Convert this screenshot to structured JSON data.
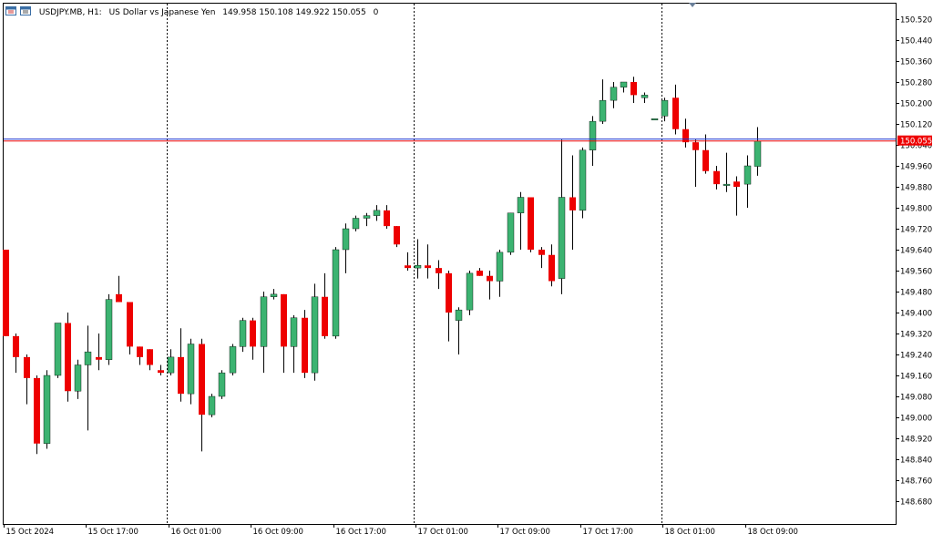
{
  "header": {
    "symbol": "USDJPY.MB, H1:",
    "description": "US Dollar vs Japanese Yen",
    "ohlc": "149.958 150.108 149.922 150.055",
    "volume": "0",
    "icon": "chart-window-icon"
  },
  "colors": {
    "bull": "#3cb371",
    "bear": "#ee0000",
    "grid": "#000000",
    "price_tag_bg": "#ee0000",
    "price_line_bid": "#ee0000",
    "price_line_ask": "#2233cc"
  },
  "current_price": {
    "label": "150.055",
    "bid": 150.055,
    "ask": 150.062
  },
  "chart_data": {
    "type": "candlestick",
    "symbol": "USDJPY.MB",
    "timeframe": "H1",
    "ylim": [
      148.6,
      150.6
    ],
    "y_ticks": [
      150.52,
      150.44,
      150.36,
      150.28,
      150.2,
      150.12,
      150.04,
      149.96,
      149.88,
      149.8,
      149.72,
      149.64,
      149.56,
      149.48,
      149.4,
      149.32,
      149.24,
      149.16,
      149.08,
      149.0,
      148.92,
      148.84,
      148.76,
      148.68
    ],
    "y_tick_labels": [
      "150.520",
      "150.440",
      "150.360",
      "150.280",
      "150.200",
      "150.120",
      "150.040",
      "149.960",
      "149.880",
      "149.800",
      "149.720",
      "149.640",
      "149.560",
      "149.480",
      "149.400",
      "149.320",
      "149.240",
      "149.160",
      "149.080",
      "149.000",
      "148.920",
      "148.840",
      "148.760",
      "148.680"
    ],
    "x_labels": [
      {
        "bar": 0,
        "text": "15 Oct 2024"
      },
      {
        "bar": 8,
        "text": "15 Oct 17:00"
      },
      {
        "bar": 16,
        "text": "16 Oct 01:00"
      },
      {
        "bar": 24,
        "text": "16 Oct 09:00"
      },
      {
        "bar": 32,
        "text": "16 Oct 17:00"
      },
      {
        "bar": 40,
        "text": "17 Oct 01:00"
      },
      {
        "bar": 48,
        "text": "17 Oct 09:00"
      },
      {
        "bar": 56,
        "text": "17 Oct 17:00"
      },
      {
        "bar": 64,
        "text": "18 Oct 01:00"
      },
      {
        "bar": 72,
        "text": "18 Oct 09:00"
      }
    ],
    "day_separators": [
      15,
      39,
      63
    ],
    "candles": [
      {
        "o": 149.64,
        "h": 149.64,
        "l": 149.31,
        "c": 149.31
      },
      {
        "o": 149.31,
        "h": 149.32,
        "l": 149.17,
        "c": 149.23
      },
      {
        "o": 149.23,
        "h": 149.24,
        "l": 149.05,
        "c": 149.15
      },
      {
        "o": 149.15,
        "h": 149.16,
        "l": 148.86,
        "c": 148.9
      },
      {
        "o": 148.9,
        "h": 149.18,
        "l": 148.88,
        "c": 149.16
      },
      {
        "o": 149.16,
        "h": 149.36,
        "l": 149.15,
        "c": 149.36
      },
      {
        "o": 149.36,
        "h": 149.4,
        "l": 149.06,
        "c": 149.1
      },
      {
        "o": 149.1,
        "h": 149.22,
        "l": 149.07,
        "c": 149.2
      },
      {
        "o": 149.2,
        "h": 149.35,
        "l": 148.95,
        "c": 149.25
      },
      {
        "o": 149.23,
        "h": 149.32,
        "l": 149.18,
        "c": 149.22
      },
      {
        "o": 149.22,
        "h": 149.47,
        "l": 149.2,
        "c": 149.45
      },
      {
        "o": 149.47,
        "h": 149.54,
        "l": 149.44,
        "c": 149.44
      },
      {
        "o": 149.44,
        "h": 149.44,
        "l": 149.24,
        "c": 149.27
      },
      {
        "o": 149.27,
        "h": 149.27,
        "l": 149.2,
        "c": 149.23
      },
      {
        "o": 149.26,
        "h": 149.26,
        "l": 149.18,
        "c": 149.2
      },
      {
        "o": 149.18,
        "h": 149.2,
        "l": 149.16,
        "c": 149.17
      },
      {
        "o": 149.17,
        "h": 149.26,
        "l": 149.16,
        "c": 149.23
      },
      {
        "o": 149.23,
        "h": 149.34,
        "l": 149.06,
        "c": 149.09
      },
      {
        "o": 149.09,
        "h": 149.3,
        "l": 149.05,
        "c": 149.28
      },
      {
        "o": 149.28,
        "h": 149.3,
        "l": 148.87,
        "c": 149.01
      },
      {
        "o": 149.01,
        "h": 149.09,
        "l": 149.0,
        "c": 149.08
      },
      {
        "o": 149.08,
        "h": 149.18,
        "l": 149.07,
        "c": 149.17
      },
      {
        "o": 149.17,
        "h": 149.28,
        "l": 149.16,
        "c": 149.27
      },
      {
        "o": 149.27,
        "h": 149.38,
        "l": 149.25,
        "c": 149.37
      },
      {
        "o": 149.37,
        "h": 149.38,
        "l": 149.22,
        "c": 149.27
      },
      {
        "o": 149.27,
        "h": 149.48,
        "l": 149.17,
        "c": 149.46
      },
      {
        "o": 149.46,
        "h": 149.49,
        "l": 149.45,
        "c": 149.47
      },
      {
        "o": 149.47,
        "h": 149.47,
        "l": 149.17,
        "c": 149.27
      },
      {
        "o": 149.27,
        "h": 149.39,
        "l": 149.17,
        "c": 149.38
      },
      {
        "o": 149.38,
        "h": 149.41,
        "l": 149.15,
        "c": 149.17
      },
      {
        "o": 149.17,
        "h": 149.51,
        "l": 149.14,
        "c": 149.46
      },
      {
        "o": 149.46,
        "h": 149.55,
        "l": 149.3,
        "c": 149.31
      },
      {
        "o": 149.31,
        "h": 149.65,
        "l": 149.3,
        "c": 149.64
      },
      {
        "o": 149.64,
        "h": 149.74,
        "l": 149.55,
        "c": 149.72
      },
      {
        "o": 149.72,
        "h": 149.77,
        "l": 149.71,
        "c": 149.76
      },
      {
        "o": 149.76,
        "h": 149.78,
        "l": 149.73,
        "c": 149.77
      },
      {
        "o": 149.77,
        "h": 149.81,
        "l": 149.75,
        "c": 149.79
      },
      {
        "o": 149.79,
        "h": 149.81,
        "l": 149.72,
        "c": 149.73
      },
      {
        "o": 149.73,
        "h": 149.73,
        "l": 149.65,
        "c": 149.66
      },
      {
        "o": 149.58,
        "h": 149.63,
        "l": 149.56,
        "c": 149.57
      },
      {
        "o": 149.57,
        "h": 149.68,
        "l": 149.53,
        "c": 149.58
      },
      {
        "o": 149.58,
        "h": 149.66,
        "l": 149.53,
        "c": 149.57
      },
      {
        "o": 149.57,
        "h": 149.6,
        "l": 149.49,
        "c": 149.55
      },
      {
        "o": 149.55,
        "h": 149.56,
        "l": 149.29,
        "c": 149.4
      },
      {
        "o": 149.37,
        "h": 149.42,
        "l": 149.24,
        "c": 149.41
      },
      {
        "o": 149.41,
        "h": 149.56,
        "l": 149.39,
        "c": 149.55
      },
      {
        "o": 149.56,
        "h": 149.57,
        "l": 149.54,
        "c": 149.54
      },
      {
        "o": 149.54,
        "h": 149.56,
        "l": 149.45,
        "c": 149.52
      },
      {
        "o": 149.52,
        "h": 149.64,
        "l": 149.46,
        "c": 149.63
      },
      {
        "o": 149.63,
        "h": 149.78,
        "l": 149.62,
        "c": 149.78
      },
      {
        "o": 149.78,
        "h": 149.86,
        "l": 149.64,
        "c": 149.84
      },
      {
        "o": 149.84,
        "h": 149.84,
        "l": 149.63,
        "c": 149.64
      },
      {
        "o": 149.64,
        "h": 149.65,
        "l": 149.57,
        "c": 149.62
      },
      {
        "o": 149.62,
        "h": 149.66,
        "l": 149.5,
        "c": 149.52
      },
      {
        "o": 149.53,
        "h": 150.06,
        "l": 149.47,
        "c": 149.84
      },
      {
        "o": 149.84,
        "h": 150.0,
        "l": 149.64,
        "c": 149.79
      },
      {
        "o": 149.79,
        "h": 150.03,
        "l": 149.76,
        "c": 150.02
      },
      {
        "o": 150.02,
        "h": 150.15,
        "l": 149.96,
        "c": 150.13
      },
      {
        "o": 150.13,
        "h": 150.29,
        "l": 150.12,
        "c": 150.21
      },
      {
        "o": 150.21,
        "h": 150.28,
        "l": 150.18,
        "c": 150.26
      },
      {
        "o": 150.26,
        "h": 150.28,
        "l": 150.24,
        "c": 150.28
      },
      {
        "o": 150.28,
        "h": 150.3,
        "l": 150.2,
        "c": 150.23
      },
      {
        "o": 150.22,
        "h": 150.24,
        "l": 150.2,
        "c": 150.23
      },
      {
        "o": 150.14,
        "h": 150.14,
        "l": 150.14,
        "c": 150.14
      },
      {
        "o": 150.15,
        "h": 150.22,
        "l": 150.13,
        "c": 150.21
      },
      {
        "o": 150.22,
        "h": 150.27,
        "l": 150.08,
        "c": 150.1
      },
      {
        "o": 150.1,
        "h": 150.14,
        "l": 150.03,
        "c": 150.05
      },
      {
        "o": 150.05,
        "h": 150.06,
        "l": 149.88,
        "c": 150.02
      },
      {
        "o": 150.02,
        "h": 150.08,
        "l": 149.93,
        "c": 149.94
      },
      {
        "o": 149.94,
        "h": 149.96,
        "l": 149.87,
        "c": 149.89
      },
      {
        "o": 149.89,
        "h": 150.01,
        "l": 149.86,
        "c": 149.89
      },
      {
        "o": 149.9,
        "h": 149.92,
        "l": 149.77,
        "c": 149.88
      },
      {
        "o": 149.89,
        "h": 150.0,
        "l": 149.8,
        "c": 149.96
      },
      {
        "o": 149.958,
        "h": 150.108,
        "l": 149.922,
        "c": 150.055
      }
    ]
  }
}
